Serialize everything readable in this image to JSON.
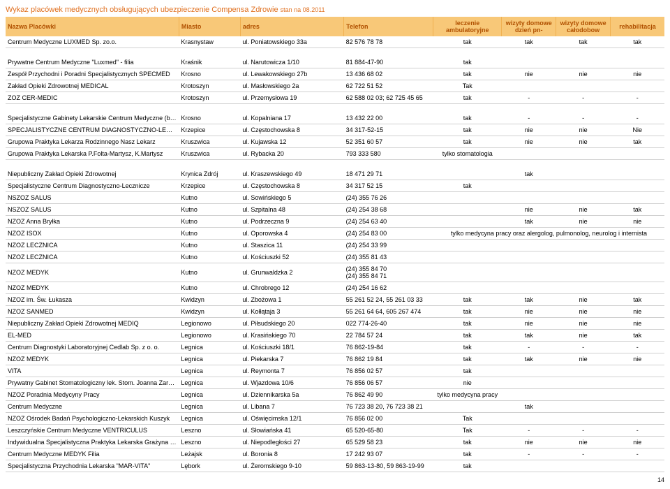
{
  "title": "Wykaz placówek medycznych obsługujących ubezpieczenie Compensa Zdrowie",
  "title_suffix": "stan na 08.2011",
  "columns": {
    "nazwa": "Nazwa Placówki",
    "miasto": "Miasto",
    "adres": "adres",
    "telefon": "Telefon",
    "leczenie": "leczenie ambulatoryjne",
    "wizyty1": "wizyty domowe dzień pn-",
    "wizyty2": "wizyty domowe całodobow",
    "rehab": "rehabilitacja"
  },
  "page_number": "14",
  "rows": [
    {
      "n": "Centrum Medyczne LUXMED Sp. zo.o.",
      "m": "Krasnystaw",
      "a": "ul. Poniatowskiego 33a",
      "t": "82 576 78 78",
      "l": "tak",
      "w1": "tak",
      "w2": "tak",
      "r": "tak",
      "spacer_after": true
    },
    {
      "n": "Prywatne Centrum Medyczne \"Luxmed\" - filia",
      "m": "Kraśnik",
      "a": "ul. Narutowicza 1/10",
      "t": "81 884-47-90",
      "l": "tak",
      "w1": "",
      "w2": "",
      "r": ""
    },
    {
      "n": "Zespół Przychodni i Poradni Specjalistycznych SPECMED",
      "m": "Krosno",
      "a": "ul. Lewakowskiego 27b",
      "t": "13 436 68 02",
      "l": "tak",
      "w1": "nie",
      "w2": "nie",
      "r": "nie"
    },
    {
      "n": "Zakład Opieki Zdrowotnej MEDICAL",
      "m": "Krotoszyn",
      "a": "ul. Masłowskiego 2a",
      "t": "62 722 51 52",
      "l": "Tak",
      "w1": "",
      "w2": "",
      "r": ""
    },
    {
      "n": "ZOZ CER-MEDIC",
      "m": "Krotoszyn",
      "a": "ul. Przemysłowa 19",
      "t": "62 588 02 03; 62 725 45 65",
      "l": "tak",
      "w1": "-",
      "w2": "-",
      "r": "-",
      "spacer_after": true
    },
    {
      "n": "Specjalistyczne Gabinety Lekarskie Centrum Medyczne (brak medycyny pracy)",
      "m": "Krosno",
      "a": "ul. Kopalniana 17",
      "t": "13 432 22 00",
      "l": "tak",
      "w1": "-",
      "w2": "-",
      "r": "-"
    },
    {
      "n": "SPECJALISTYCZNE CENTRUM DIAGNOSTYCZNO-LECZNICZE",
      "m": "Krzepice",
      "a": "ul. Częstochowska 8",
      "t": "34 317-52-15",
      "l": "tak",
      "w1": "nie",
      "w2": "nie",
      "r": "Nie"
    },
    {
      "n": "Grupowa Praktyka Lekarza Rodzinnego Nasz Lekarz",
      "m": "Kruszwica",
      "a": "ul. Kujawska 12",
      "t": "52 351 60 57",
      "l": "tak",
      "w1": "nie",
      "w2": "nie",
      "r": "tak"
    },
    {
      "n": "Grupowa Praktyka Lekarska P.Folta-Martysz, K.Martysz",
      "m": "Kruszwica",
      "a": "ul. Rybacka 20",
      "t": "793 333 580",
      "l": "tylko stomatologia",
      "w1": "",
      "w2": "",
      "r": "",
      "spacer_after": true
    },
    {
      "n": "Niepubliczny Zakład Opieki Zdrowotnej",
      "m": "Krynica Zdrój",
      "a": "ul. Kraszewskiego 49",
      "t": "18 471 29 71",
      "l": "",
      "w1": "tak",
      "w2": "",
      "r": ""
    },
    {
      "n": "Specjalistyczne Centrum Diagnostyczno-Lecznicze",
      "m": "Krzepice",
      "a": "ul. Częstochowska 8",
      "t": "34 317 52 15",
      "l": "tak",
      "w1": "",
      "w2": "",
      "r": ""
    },
    {
      "n": "NSZOZ SALUS",
      "m": "Kutno",
      "a": "ul. Sowińskiego 5",
      "t": "(24) 355 76 26",
      "l": "",
      "w1": "",
      "w2": "",
      "r": ""
    },
    {
      "n": "NSZOZ SALUS",
      "m": "Kutno",
      "a": "ul. Szpitalna 48",
      "t": "(24) 254 38 68",
      "l": "",
      "w1": "nie",
      "w2": "nie",
      "r": "tak"
    },
    {
      "n": "NZOZ Anna Bryłka",
      "m": "Kutno",
      "a": "ul. Podrzeczna 9",
      "t": "(24) 254 63 40",
      "l": "",
      "w1": "tak",
      "w2": "nie",
      "r": "nie"
    },
    {
      "n": "NZOZ ISOX",
      "m": "Kutno",
      "a": "ul. Oporowska 4",
      "t": "(24) 254 83 00",
      "l": "tylko medycyna pracy oraz alergolog, pulmonolog, neurolog i internista",
      "w1": "",
      "w2": "",
      "r": "",
      "wide_l": true
    },
    {
      "n": "NZOZ LECZNICA",
      "m": "Kutno",
      "a": "ul. Staszica 11",
      "t": "(24) 254 33 99",
      "l": "",
      "w1": "",
      "w2": "",
      "r": ""
    },
    {
      "n": "NZOZ LECZNICA",
      "m": "Kutno",
      "a": "ul. Kościuszki 52",
      "t": "(24) 355 81 43",
      "l": "",
      "w1": "",
      "w2": "",
      "r": ""
    },
    {
      "n": "NZOZ MEDYK",
      "m": "Kutno",
      "a": "ul. Grunwaldzka 2",
      "t": "(24) 355 84 70\n(24) 355 84 71",
      "l": "",
      "w1": "",
      "w2": "",
      "r": "",
      "multiline_t": true
    },
    {
      "n": "NZOZ MEDYK",
      "m": "Kutno",
      "a": "ul. Chrobrego 12",
      "t": "(24) 254 16 62",
      "l": "",
      "w1": "",
      "w2": "",
      "r": ""
    },
    {
      "n": "NZOZ im. Św. Łukasza",
      "m": "Kwidzyn",
      "a": "ul. Zbożowa 1",
      "t": "55 261 52 24, 55 261 03 33",
      "l": "tak",
      "w1": "tak",
      "w2": "nie",
      "r": "tak"
    },
    {
      "n": "NZOZ SANMED",
      "m": "Kwidzyn",
      "a": "ul. Kołłątaja 3",
      "t": "55 261 64 64, 605 267 474",
      "l": "tak",
      "w1": "nie",
      "w2": "nie",
      "r": "nie"
    },
    {
      "n": "Niepubliczny Zakład Opieki Zdrowotnej MEDIQ",
      "m": "Legionowo",
      "a": "ul. Piłsudskiego 20",
      "t": "022 774-26-40",
      "l": "tak",
      "w1": "nie",
      "w2": "nie",
      "r": "nie"
    },
    {
      "n": "EL-MED",
      "m": "Legionowo",
      "a": "ul. Krasińskiego 70",
      "t": "22 784 57 24",
      "l": "tak",
      "w1": "tak",
      "w2": "nie",
      "r": "tak"
    },
    {
      "n": "Centrum Diagnostyki Laboratoryjnej Cedlab Sp. z o. o.",
      "m": "Legnica",
      "a": "ul. Kościuszki 18/1",
      "t": "76 862-19-84",
      "l": "tak",
      "w1": "-",
      "w2": "-",
      "r": "-"
    },
    {
      "n": "NZOZ MEDYK",
      "m": "Legnica",
      "a": "ul. Piekarska 7",
      "t": "76 862 19 84",
      "l": "tak",
      "w1": "tak",
      "w2": "nie",
      "r": "nie"
    },
    {
      "n": "VITA",
      "m": "Legnica",
      "a": "ul. Reymonta 7",
      "t": "76 856 02 57",
      "l": "tak",
      "w1": "",
      "w2": "",
      "r": ""
    },
    {
      "n": "Prywatny Gabinet Stomatologiczny lek. Stom. Joanna Zarzecka-Nanowska",
      "m": "Legnica",
      "a": "ul. Wjazdowa 10/6",
      "t": "76 856 06 57",
      "l": "nie",
      "w1": "",
      "w2": "",
      "r": ""
    },
    {
      "n": "NZOZ Poradnia Medycyny Pracy",
      "m": "Legnica",
      "a": "ul. Dziennikarska 5a",
      "t": "76 862 49 90",
      "l": "tylko medycyna pracy",
      "w1": "",
      "w2": "",
      "r": ""
    },
    {
      "n": "Centrum Medyczne",
      "m": "Legnica",
      "a": "ul. Libana 7",
      "t": "76 723 38 20, 76 723 38 21",
      "l": "",
      "w1": "tak",
      "w2": "",
      "r": ""
    },
    {
      "n": "NZOZ Ośrodek Badań Psychologiczno-Lekarskich Kuszyk",
      "m": "Legnica",
      "a": "ul. Oświęcimska 12/1",
      "t": "76 856 02 00",
      "l": "Tak",
      "w1": "",
      "w2": "",
      "r": ""
    },
    {
      "n": "Leszczyńskie Centrum Medyczne VENTRICULUS",
      "m": "Leszno",
      "a": "ul. Słowiańska 41",
      "t": "65 520-65-80",
      "l": "Tak",
      "w1": "-",
      "w2": "-",
      "r": "-"
    },
    {
      "n": "Indywidualna Specjalistyczna Praktyka Lekarska Grażyna Leśniewicz",
      "m": "Leszno",
      "a": "ul. Niepodległości 27",
      "t": "65 529 58 23",
      "l": "tak",
      "w1": "nie",
      "w2": "nie",
      "r": "nie"
    },
    {
      "n": "Centrum Medyczne MEDYK Filia",
      "m": "Leżajsk",
      "a": "ul. Boronia 8",
      "t": "17 242 93 07",
      "l": "tak",
      "w1": "-",
      "w2": "-",
      "r": "-"
    },
    {
      "n": "Specjalistyczna Przychodnia Lekarska \"MAR-VITA\"",
      "m": "Lębork",
      "a": "ul. Żeromskiego 9-10",
      "t": "59 863-13-80, 59 863-19-99",
      "l": "tak",
      "w1": "",
      "w2": "",
      "r": ""
    }
  ]
}
